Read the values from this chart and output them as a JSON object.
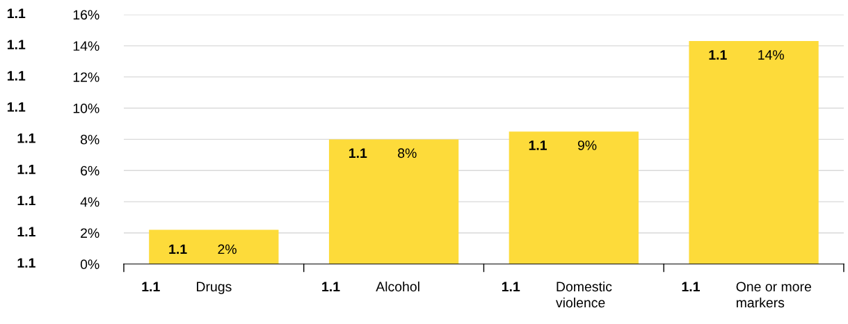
{
  "chart_data": {
    "type": "bar",
    "categories": [
      "Drugs",
      "Alcohol",
      "Domestic\nviolence",
      "One or more\nmarkers"
    ],
    "values": [
      2.2,
      8.0,
      8.5,
      14.3
    ],
    "value_labels": [
      "2%",
      "8%",
      "9%",
      "14%"
    ],
    "color": "#fddb3a",
    "ylim": [
      0,
      16
    ],
    "yticks": [
      {
        "value": 0,
        "label": "0%"
      },
      {
        "value": 2,
        "label": "2%"
      },
      {
        "value": 4,
        "label": "4%"
      },
      {
        "value": 6,
        "label": "6%"
      },
      {
        "value": 8,
        "label": "8%"
      },
      {
        "value": 10,
        "label": "10%"
      },
      {
        "value": 12,
        "label": "12%"
      },
      {
        "value": 14,
        "label": "14%"
      },
      {
        "value": 16,
        "label": "16%"
      }
    ],
    "grid": "y",
    "annotations": [
      "1.1",
      "1.1",
      "1.1",
      "1.1",
      "1.1",
      "1.1",
      "1.1",
      "1.1",
      "1.1",
      "1.1",
      "1.1",
      "1.1",
      "1.1",
      "1.1",
      "1.1",
      "1.1",
      "1.1"
    ]
  }
}
